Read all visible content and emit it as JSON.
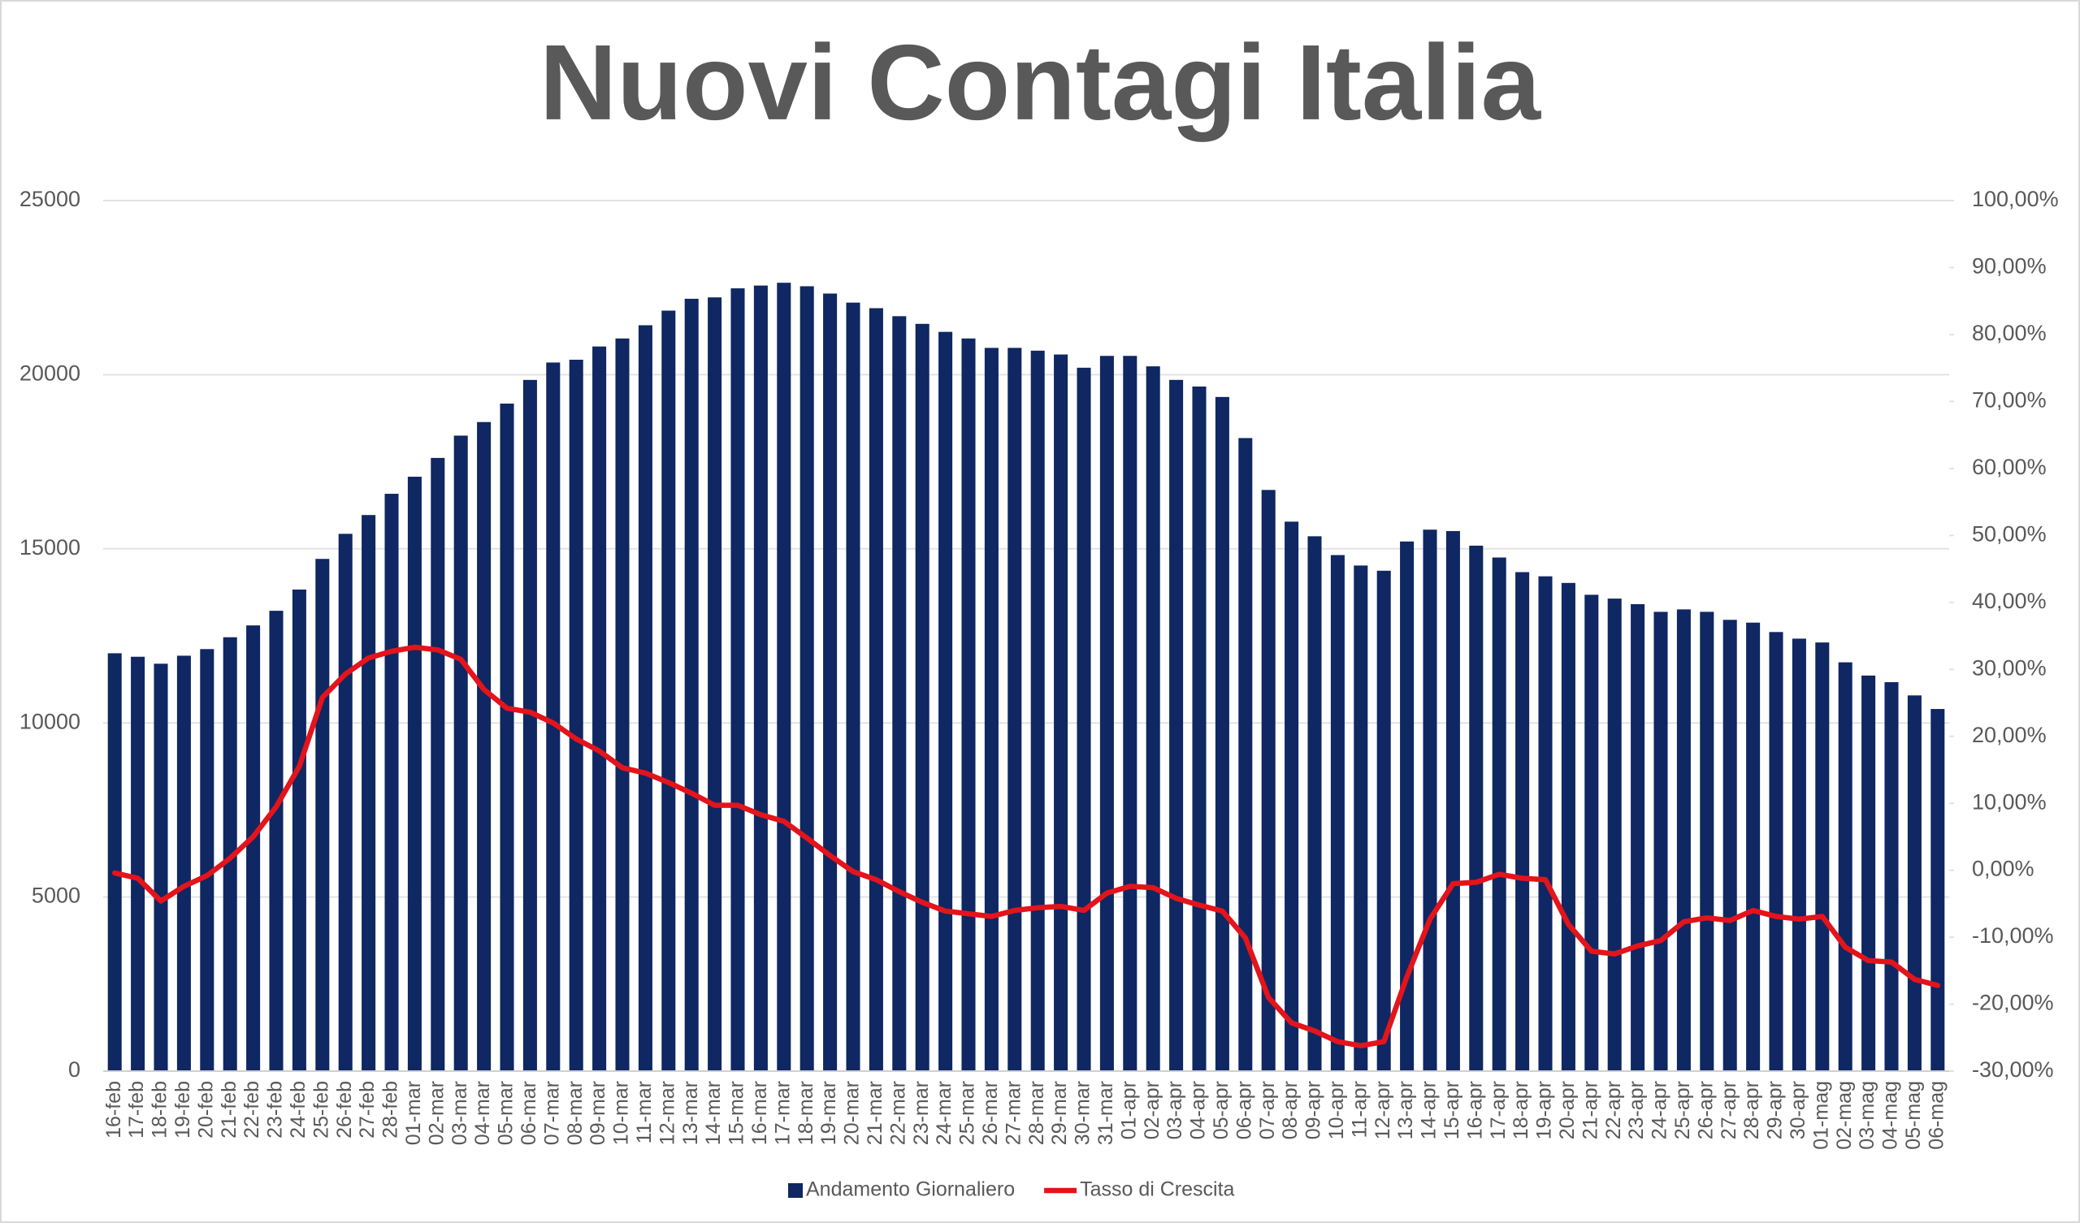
{
  "chart_data": {
    "type": "bar-line",
    "title": "Nuovi Contagi Italia",
    "categories": [
      "16-feb",
      "17-feb",
      "18-feb",
      "19-feb",
      "20-feb",
      "21-feb",
      "22-feb",
      "23-feb",
      "24-feb",
      "25-feb",
      "26-feb",
      "27-feb",
      "28-feb",
      "01-mar",
      "02-mar",
      "03-mar",
      "04-mar",
      "05-mar",
      "06-mar",
      "07-mar",
      "08-mar",
      "09-mar",
      "10-mar",
      "11-mar",
      "12-mar",
      "13-mar",
      "14-mar",
      "15-mar",
      "16-mar",
      "17-mar",
      "18-mar",
      "19-mar",
      "20-mar",
      "21-mar",
      "22-mar",
      "23-mar",
      "24-mar",
      "25-mar",
      "26-mar",
      "27-mar",
      "28-mar",
      "29-mar",
      "30-mar",
      "31-mar",
      "01-apr",
      "02-apr",
      "03-apr",
      "04-apr",
      "05-apr",
      "06-apr",
      "07-apr",
      "08-apr",
      "09-apr",
      "10-apr",
      "11-apr",
      "12-apr",
      "13-apr",
      "14-apr",
      "15-apr",
      "16-apr",
      "17-apr",
      "18-apr",
      "19-apr",
      "20-apr",
      "21-apr",
      "22-apr",
      "23-apr",
      "24-apr",
      "25-apr",
      "26-apr",
      "27-apr",
      "28-apr",
      "29-apr",
      "30-apr",
      "01-mag",
      "02-mag",
      "03-mag",
      "04-mag",
      "05-mag",
      "06-mag"
    ],
    "series": [
      {
        "name": "Andamento Giornaliero",
        "type": "bar",
        "color": "#0f2762",
        "values": [
          12000,
          11900,
          11700,
          11930,
          12120,
          12460,
          12800,
          13220,
          13830,
          14710,
          15430,
          15970,
          16580,
          17070,
          17610,
          18250,
          18640,
          19170,
          19850,
          20350,
          20430,
          20810,
          21040,
          21420,
          21840,
          22180,
          22220,
          22480,
          22560,
          22640,
          22540,
          22330,
          22070,
          21910,
          21680,
          21460,
          21230,
          21040,
          20770,
          20770,
          20690,
          20580,
          20200,
          20540,
          20540,
          20240,
          19850,
          19660,
          19360,
          18180,
          16690,
          15780,
          15360,
          14820,
          14520,
          14370,
          15210,
          15550,
          15510,
          15090,
          14750,
          14330,
          14210,
          14020,
          13680,
          13570,
          13410,
          13190,
          13260,
          13190,
          12960,
          12880,
          12610,
          12420,
          12310,
          11740,
          11360,
          11170,
          10790,
          10400
        ]
      },
      {
        "name": "Tasso di Crescita",
        "type": "line",
        "axis": "y2",
        "color": "#e3141b",
        "values": [
          -0.4,
          -1.2,
          -4.6,
          -2.4,
          -0.8,
          1.8,
          5,
          9.5,
          15.5,
          25.8,
          29.3,
          31.7,
          32.7,
          33.3,
          32.9,
          31.5,
          27,
          24.2,
          23.6,
          22,
          19.6,
          17.8,
          15.3,
          14.5,
          13.1,
          11.5,
          9.7,
          9.7,
          8.3,
          7.3,
          4.8,
          2.2,
          -0.2,
          -1.4,
          -3.2,
          -4.8,
          -6.1,
          -6.5,
          -6.9,
          -6,
          -5.6,
          -5.4,
          -6,
          -3.4,
          -2.4,
          -2.6,
          -4.2,
          -5.2,
          -6.1,
          -10.1,
          -19,
          -22.8,
          -24,
          -25.6,
          -26.2,
          -25.6,
          -15.9,
          -7.3,
          -2,
          -1.8,
          -0.6,
          -1.2,
          -1.4,
          -8.1,
          -12.1,
          -12.5,
          -11.3,
          -10.5,
          -7.7,
          -7.1,
          -7.5,
          -6,
          -6.9,
          -7.3,
          -6.9,
          -11.5,
          -13.5,
          -13.7,
          -16.3,
          -17.2
        ]
      }
    ],
    "ylim": [
      0,
      25000
    ],
    "yticks": [
      0,
      5000,
      10000,
      15000,
      20000,
      25000
    ],
    "y2lim": [
      -30,
      100
    ],
    "y2ticks": [
      {
        "value": -30,
        "label": "-30,00%"
      },
      {
        "value": -20,
        "label": "-20,00%"
      },
      {
        "value": -10,
        "label": "-10,00%"
      },
      {
        "value": 0,
        "label": "0,00%"
      },
      {
        "value": 10,
        "label": "10,00%"
      },
      {
        "value": 20,
        "label": "20,00%"
      },
      {
        "value": 30,
        "label": "30,00%"
      },
      {
        "value": 40,
        "label": "40,00%"
      },
      {
        "value": 50,
        "label": "50,00%"
      },
      {
        "value": 60,
        "label": "60,00%"
      },
      {
        "value": 70,
        "label": "70,00%"
      },
      {
        "value": 80,
        "label": "80,00%"
      },
      {
        "value": 90,
        "label": "90,00%"
      },
      {
        "value": 100,
        "label": "100,00%"
      }
    ],
    "grid": true,
    "legend": "bottom"
  }
}
